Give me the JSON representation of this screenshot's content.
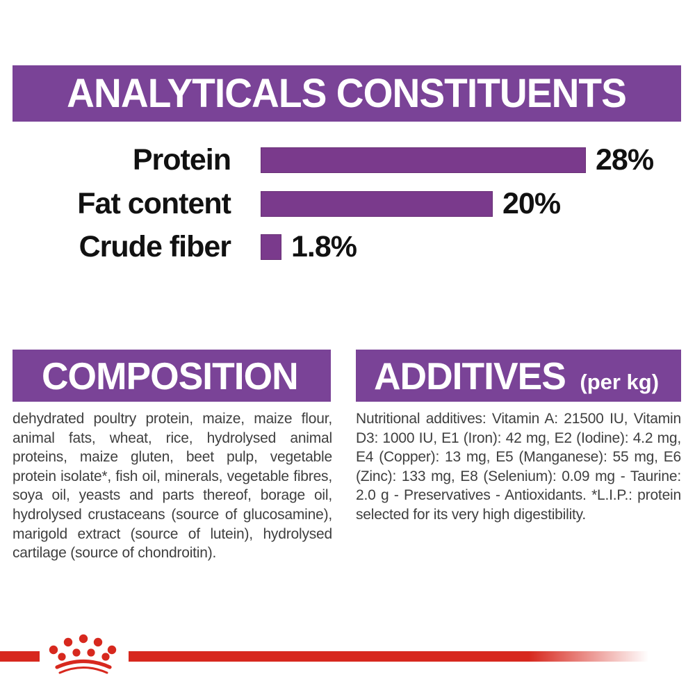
{
  "header": {
    "title": "ANALYTICALS CONSTITUENTS"
  },
  "chart_data": {
    "type": "bar",
    "orientation": "horizontal",
    "categories": [
      "Protein",
      "Fat content",
      "Crude fiber"
    ],
    "values": [
      28,
      20,
      1.8
    ],
    "value_labels": [
      "28%",
      "20%",
      "1.8%"
    ],
    "xlim": [
      0,
      28
    ],
    "bar_color": "#7a3a8c",
    "grid": false,
    "legend": "none"
  },
  "composition": {
    "title": "COMPOSITION",
    "body": "dehydrated poultry protein, maize, maize flour, animal fats, wheat, rice, hydrolysed animal proteins, maize gluten, beet pulp, vegetable protein isolate*, fish oil, minerals, vegetable fibres, soya oil, yeasts and parts thereof, borage oil, hydrolysed crustaceans (source of glucosamine), marigold extract (source of lutein), hydrolysed cartilage (source of chondroitin)."
  },
  "additives": {
    "title": "ADDITIVES",
    "subtitle": "(per kg)",
    "body": "Nutritional additives: Vitamin A: 21500 IU, Vitamin D3: 1000 IU, E1 (Iron): 42 mg, E2 (Iodine): 4.2 mg, E4 (Copper): 13 mg, E5 (Manganese): 55 mg, E6 (Zinc): 133 mg, E8 (Selenium): 0.09 mg - Taurine: 2.0 g - Preservatives - Antioxidants. *L.I.P.: protein selected for its very high digestibility."
  },
  "footer": {
    "logo": "royal-canin-crown-logo"
  },
  "colors": {
    "banner_purple": "#7a4397",
    "bar_purple": "#7a3a8c",
    "accent_red": "#d7281e",
    "body_text": "#3f3f3f",
    "label_black": "#111111"
  }
}
